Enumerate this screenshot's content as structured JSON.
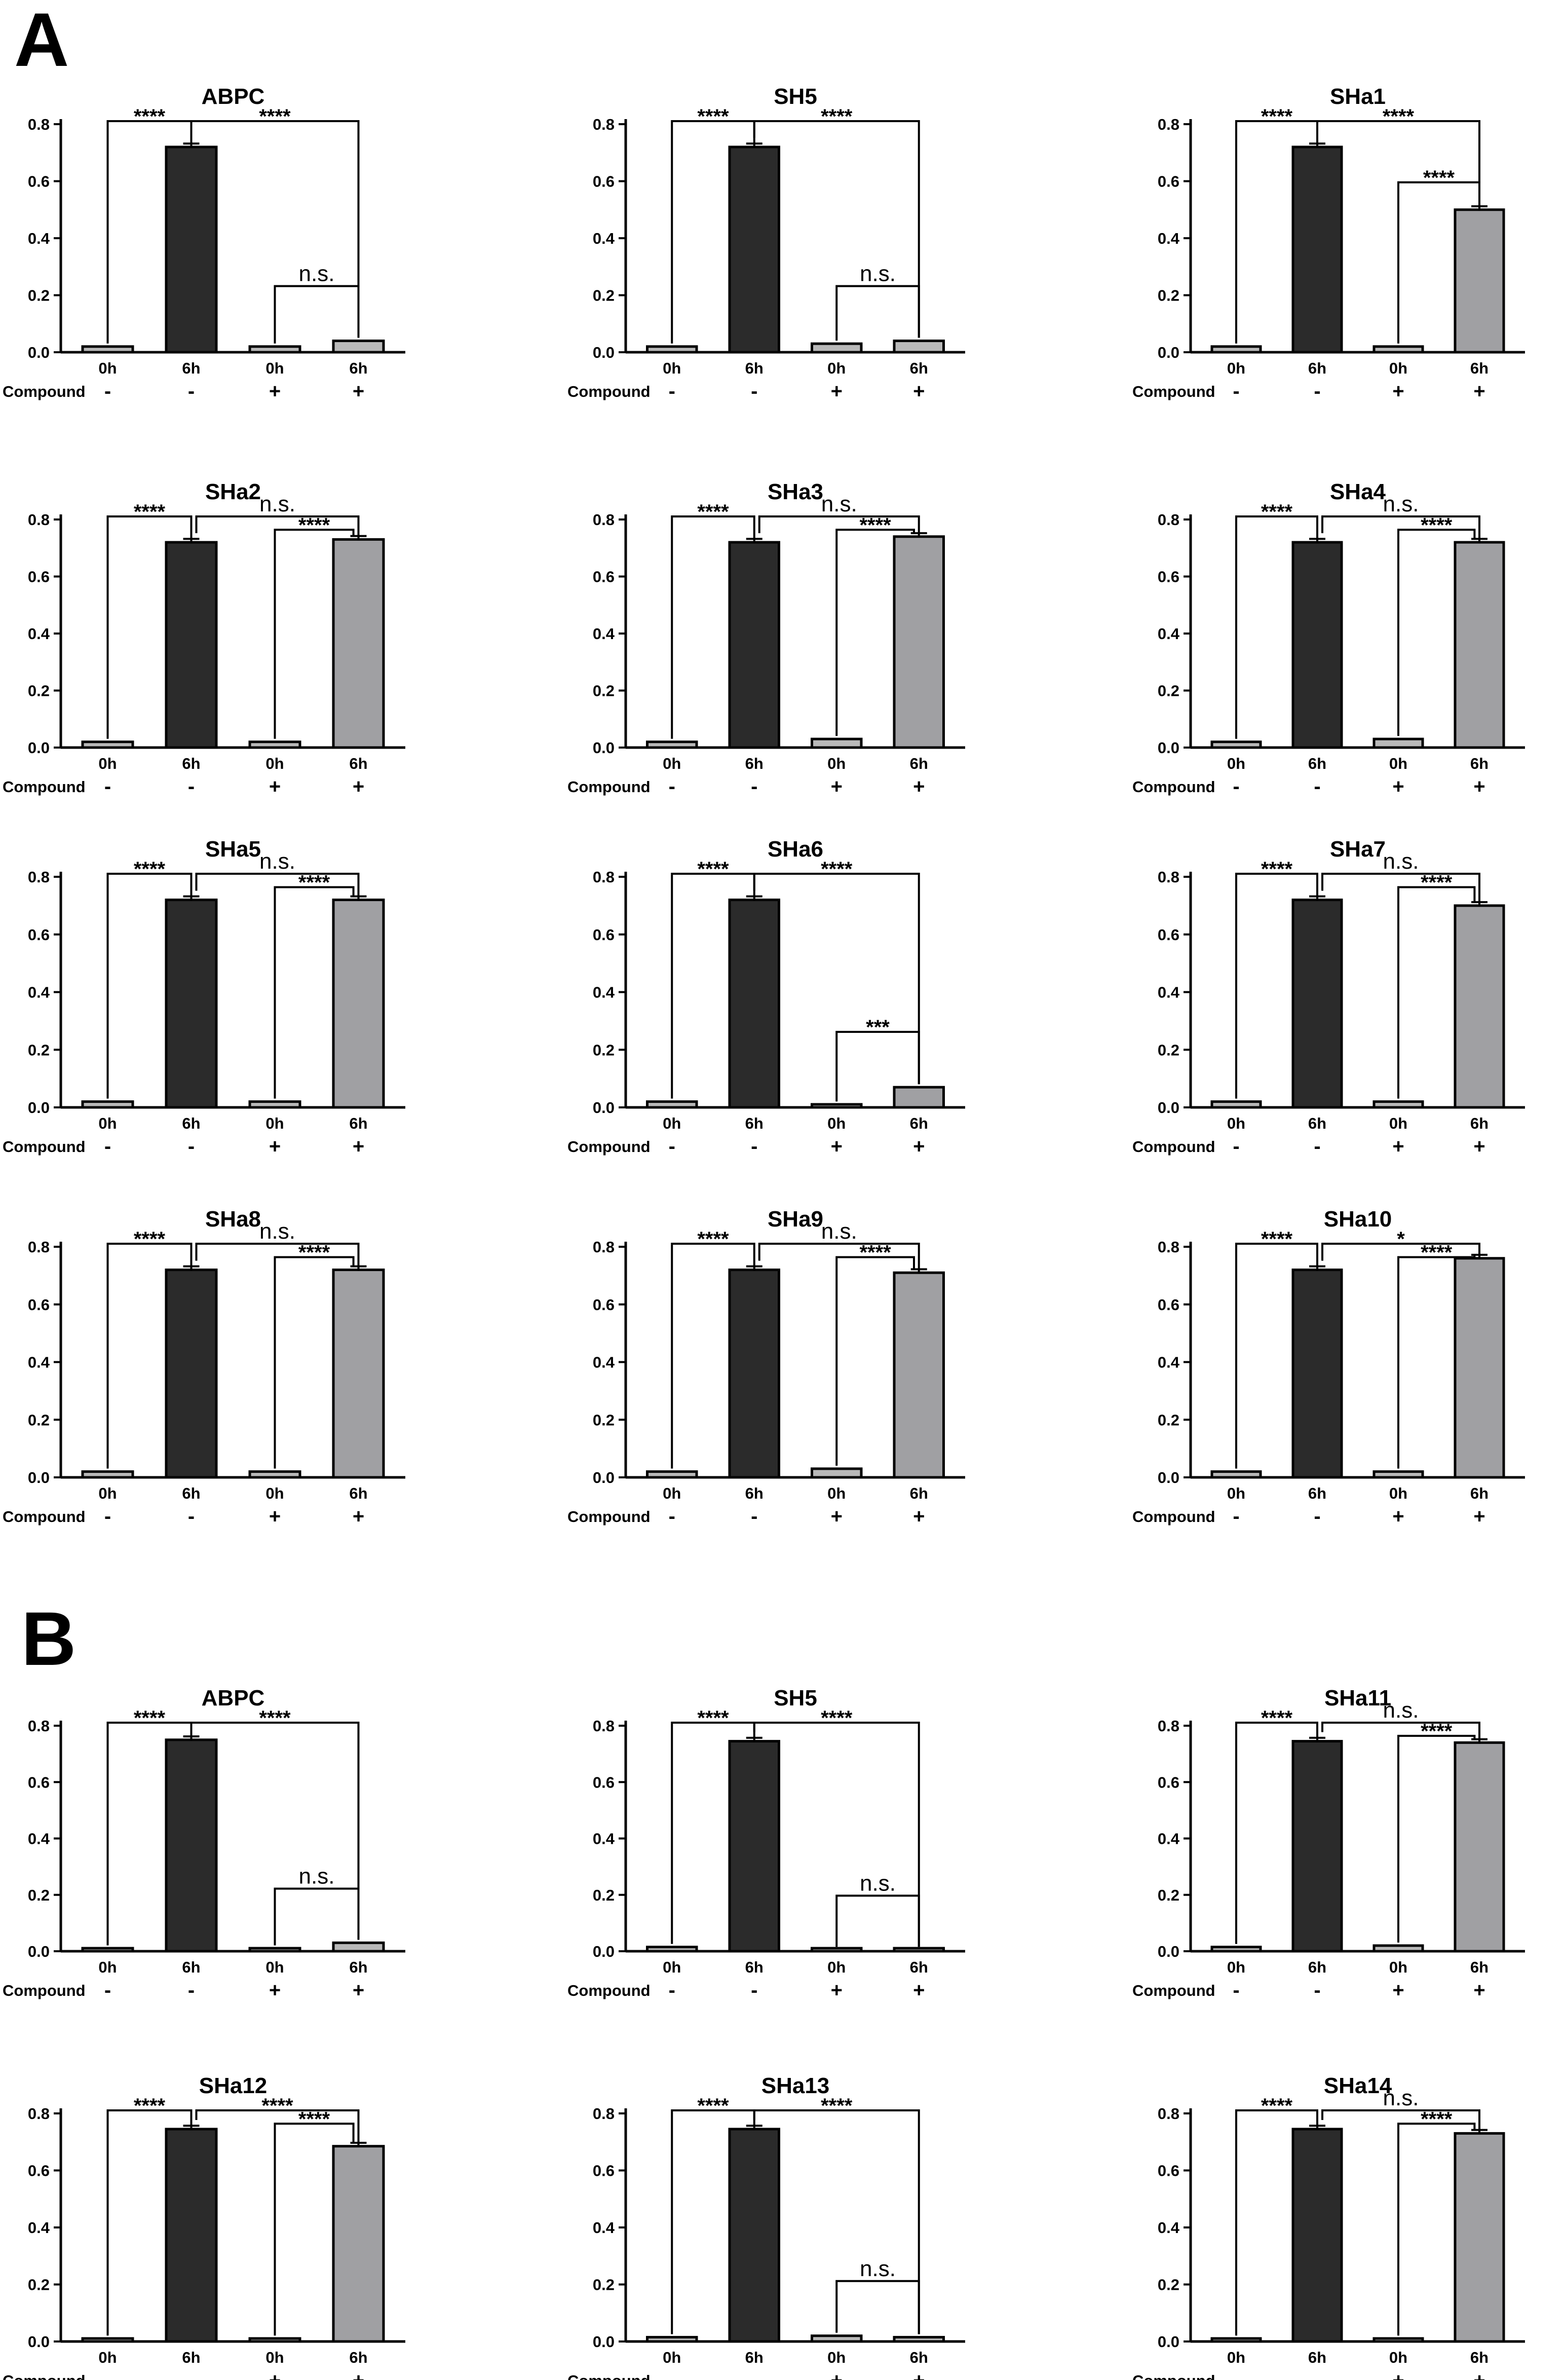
{
  "panels": [
    {
      "letter": "A"
    },
    {
      "letter": "B"
    }
  ],
  "colors": {
    "bar_dark": "#2b2b2b",
    "bar_light": "#a0a0a3",
    "bar_small": "#b9b9b9",
    "axis": "#000000"
  },
  "chart_data": [
    {
      "type": "bar",
      "panel": "A",
      "title": "ABPC",
      "categories": [
        "0h",
        "6h",
        "0h",
        "6h"
      ],
      "compound": [
        "-",
        "-",
        "+",
        "+"
      ],
      "compound_label": "Compound",
      "values": [
        0.02,
        0.72,
        0.02,
        0.04
      ],
      "ylim": [
        0,
        0.8
      ],
      "yticks": [
        "0.0",
        "0.2",
        "0.4",
        "0.6",
        "0.8"
      ],
      "brackets": [
        {
          "from": 0,
          "to": 1,
          "text": "****"
        },
        {
          "from": 1,
          "to": 3,
          "text": "****"
        },
        {
          "from": 2,
          "to": 3,
          "text": "n.s."
        }
      ]
    },
    {
      "type": "bar",
      "panel": "A",
      "title": "SH5",
      "categories": [
        "0h",
        "6h",
        "0h",
        "6h"
      ],
      "compound": [
        "-",
        "-",
        "+",
        "+"
      ],
      "compound_label": "Compound",
      "values": [
        0.02,
        0.72,
        0.03,
        0.04
      ],
      "ylim": [
        0,
        0.8
      ],
      "yticks": [
        "0.0",
        "0.2",
        "0.4",
        "0.6",
        "0.8"
      ],
      "brackets": [
        {
          "from": 0,
          "to": 1,
          "text": "****"
        },
        {
          "from": 1,
          "to": 3,
          "text": "****"
        },
        {
          "from": 2,
          "to": 3,
          "text": "n.s."
        }
      ]
    },
    {
      "type": "bar",
      "panel": "A",
      "title": "SHa1",
      "categories": [
        "0h",
        "6h",
        "0h",
        "6h"
      ],
      "compound": [
        "-",
        "-",
        "+",
        "+"
      ],
      "compound_label": "Compound",
      "values": [
        0.02,
        0.72,
        0.02,
        0.5
      ],
      "ylim": [
        0,
        0.8
      ],
      "yticks": [
        "0.0",
        "0.2",
        "0.4",
        "0.6",
        "0.8"
      ],
      "brackets": [
        {
          "from": 0,
          "to": 1,
          "text": "****"
        },
        {
          "from": 1,
          "to": 3,
          "text": "****"
        },
        {
          "from": 2,
          "to": 3,
          "text": "****"
        }
      ]
    },
    {
      "type": "bar",
      "panel": "A",
      "title": "SHa2",
      "categories": [
        "0h",
        "6h",
        "0h",
        "6h"
      ],
      "compound": [
        "-",
        "-",
        "+",
        "+"
      ],
      "compound_label": "Compound",
      "values": [
        0.02,
        0.72,
        0.02,
        0.73
      ],
      "ylim": [
        0,
        0.8
      ],
      "yticks": [
        "0.0",
        "0.2",
        "0.4",
        "0.6",
        "0.8"
      ],
      "brackets": [
        {
          "from": 0,
          "to": 1,
          "text": "****"
        },
        {
          "from": 1,
          "to": 3,
          "text": "n.s."
        },
        {
          "from": 2,
          "to": 3,
          "text": "****"
        }
      ]
    },
    {
      "type": "bar",
      "panel": "A",
      "title": "SHa3",
      "categories": [
        "0h",
        "6h",
        "0h",
        "6h"
      ],
      "compound": [
        "-",
        "-",
        "+",
        "+"
      ],
      "compound_label": "Compound",
      "values": [
        0.02,
        0.72,
        0.03,
        0.74
      ],
      "ylim": [
        0,
        0.8
      ],
      "yticks": [
        "0.0",
        "0.2",
        "0.4",
        "0.6",
        "0.8"
      ],
      "brackets": [
        {
          "from": 0,
          "to": 1,
          "text": "****"
        },
        {
          "from": 1,
          "to": 3,
          "text": "n.s."
        },
        {
          "from": 2,
          "to": 3,
          "text": "****"
        }
      ]
    },
    {
      "type": "bar",
      "panel": "A",
      "title": "SHa4",
      "categories": [
        "0h",
        "6h",
        "0h",
        "6h"
      ],
      "compound": [
        "-",
        "-",
        "+",
        "+"
      ],
      "compound_label": "Compound",
      "values": [
        0.02,
        0.72,
        0.03,
        0.72
      ],
      "ylim": [
        0,
        0.8
      ],
      "yticks": [
        "0.0",
        "0.2",
        "0.4",
        "0.6",
        "0.8"
      ],
      "brackets": [
        {
          "from": 0,
          "to": 1,
          "text": "****"
        },
        {
          "from": 1,
          "to": 3,
          "text": "n.s."
        },
        {
          "from": 2,
          "to": 3,
          "text": "****"
        }
      ]
    },
    {
      "type": "bar",
      "panel": "A",
      "title": "SHa5",
      "categories": [
        "0h",
        "6h",
        "0h",
        "6h"
      ],
      "compound": [
        "-",
        "-",
        "+",
        "+"
      ],
      "compound_label": "Compound",
      "values": [
        0.02,
        0.72,
        0.02,
        0.72
      ],
      "ylim": [
        0,
        0.8
      ],
      "yticks": [
        "0.0",
        "0.2",
        "0.4",
        "0.6",
        "0.8"
      ],
      "brackets": [
        {
          "from": 0,
          "to": 1,
          "text": "****"
        },
        {
          "from": 1,
          "to": 3,
          "text": "n.s."
        },
        {
          "from": 2,
          "to": 3,
          "text": "****"
        }
      ]
    },
    {
      "type": "bar",
      "panel": "A",
      "title": "SHa6",
      "categories": [
        "0h",
        "6h",
        "0h",
        "6h"
      ],
      "compound": [
        "-",
        "-",
        "+",
        "+"
      ],
      "compound_label": "Compound",
      "values": [
        0.02,
        0.72,
        0.01,
        0.07
      ],
      "ylim": [
        0,
        0.8
      ],
      "yticks": [
        "0.0",
        "0.2",
        "0.4",
        "0.6",
        "0.8"
      ],
      "brackets": [
        {
          "from": 0,
          "to": 1,
          "text": "****"
        },
        {
          "from": 1,
          "to": 3,
          "text": "****"
        },
        {
          "from": 2,
          "to": 3,
          "text": "***"
        }
      ]
    },
    {
      "type": "bar",
      "panel": "A",
      "title": "SHa7",
      "categories": [
        "0h",
        "6h",
        "0h",
        "6h"
      ],
      "compound": [
        "-",
        "-",
        "+",
        "+"
      ],
      "compound_label": "Compound",
      "values": [
        0.02,
        0.72,
        0.02,
        0.7
      ],
      "ylim": [
        0,
        0.8
      ],
      "yticks": [
        "0.0",
        "0.2",
        "0.4",
        "0.6",
        "0.8"
      ],
      "brackets": [
        {
          "from": 0,
          "to": 1,
          "text": "****"
        },
        {
          "from": 1,
          "to": 3,
          "text": "n.s."
        },
        {
          "from": 2,
          "to": 3,
          "text": "****"
        }
      ]
    },
    {
      "type": "bar",
      "panel": "A",
      "title": "SHa8",
      "categories": [
        "0h",
        "6h",
        "0h",
        "6h"
      ],
      "compound": [
        "-",
        "-",
        "+",
        "+"
      ],
      "compound_label": "Compound",
      "values": [
        0.02,
        0.72,
        0.02,
        0.72
      ],
      "ylim": [
        0,
        0.8
      ],
      "yticks": [
        "0.0",
        "0.2",
        "0.4",
        "0.6",
        "0.8"
      ],
      "brackets": [
        {
          "from": 0,
          "to": 1,
          "text": "****"
        },
        {
          "from": 1,
          "to": 3,
          "text": "n.s."
        },
        {
          "from": 2,
          "to": 3,
          "text": "****"
        }
      ]
    },
    {
      "type": "bar",
      "panel": "A",
      "title": "SHa9",
      "categories": [
        "0h",
        "6h",
        "0h",
        "6h"
      ],
      "compound": [
        "-",
        "-",
        "+",
        "+"
      ],
      "compound_label": "Compound",
      "values": [
        0.02,
        0.72,
        0.03,
        0.71
      ],
      "ylim": [
        0,
        0.8
      ],
      "yticks": [
        "0.0",
        "0.2",
        "0.4",
        "0.6",
        "0.8"
      ],
      "brackets": [
        {
          "from": 0,
          "to": 1,
          "text": "****"
        },
        {
          "from": 1,
          "to": 3,
          "text": "n.s."
        },
        {
          "from": 2,
          "to": 3,
          "text": "****"
        }
      ]
    },
    {
      "type": "bar",
      "panel": "A",
      "title": "SHa10",
      "categories": [
        "0h",
        "6h",
        "0h",
        "6h"
      ],
      "compound": [
        "-",
        "-",
        "+",
        "+"
      ],
      "compound_label": "Compound",
      "values": [
        0.02,
        0.72,
        0.02,
        0.76
      ],
      "ylim": [
        0,
        0.8
      ],
      "yticks": [
        "0.0",
        "0.2",
        "0.4",
        "0.6",
        "0.8"
      ],
      "brackets": [
        {
          "from": 0,
          "to": 1,
          "text": "****"
        },
        {
          "from": 1,
          "to": 3,
          "text": "*"
        },
        {
          "from": 2,
          "to": 3,
          "text": "****"
        }
      ]
    },
    {
      "type": "bar",
      "panel": "B",
      "title": "ABPC",
      "categories": [
        "0h",
        "6h",
        "0h",
        "6h"
      ],
      "compound": [
        "-",
        "-",
        "+",
        "+"
      ],
      "compound_label": "Compound",
      "values": [
        0.01,
        0.75,
        0.01,
        0.03
      ],
      "ylim": [
        0,
        0.8
      ],
      "yticks": [
        "0.0",
        "0.2",
        "0.4",
        "0.6",
        "0.8"
      ],
      "brackets": [
        {
          "from": 0,
          "to": 1,
          "text": "****"
        },
        {
          "from": 1,
          "to": 3,
          "text": "****"
        },
        {
          "from": 2,
          "to": 3,
          "text": "n.s."
        }
      ]
    },
    {
      "type": "bar",
      "panel": "B",
      "title": "SH5",
      "categories": [
        "0h",
        "6h",
        "0h",
        "6h"
      ],
      "compound": [
        "-",
        "-",
        "+",
        "+"
      ],
      "compound_label": "Compound",
      "values": [
        0.015,
        0.745,
        0.005,
        0.005
      ],
      "ylim": [
        0,
        0.8
      ],
      "yticks": [
        "0.0",
        "0.2",
        "0.4",
        "0.6",
        "0.8"
      ],
      "brackets": [
        {
          "from": 0,
          "to": 1,
          "text": "****"
        },
        {
          "from": 1,
          "to": 3,
          "text": "****"
        },
        {
          "from": 2,
          "to": 3,
          "text": "n.s."
        }
      ]
    },
    {
      "type": "bar",
      "panel": "B",
      "title": "SHa11",
      "categories": [
        "0h",
        "6h",
        "0h",
        "6h"
      ],
      "compound": [
        "-",
        "-",
        "+",
        "+"
      ],
      "compound_label": "Compound",
      "values": [
        0.015,
        0.745,
        0.02,
        0.74
      ],
      "ylim": [
        0,
        0.8
      ],
      "yticks": [
        "0.0",
        "0.2",
        "0.4",
        "0.6",
        "0.8"
      ],
      "brackets": [
        {
          "from": 0,
          "to": 1,
          "text": "****"
        },
        {
          "from": 1,
          "to": 3,
          "text": "n.s."
        },
        {
          "from": 2,
          "to": 3,
          "text": "****"
        }
      ]
    },
    {
      "type": "bar",
      "panel": "B",
      "title": "SHa12",
      "categories": [
        "0h",
        "6h",
        "0h",
        "6h"
      ],
      "compound": [
        "-",
        "-",
        "+",
        "+"
      ],
      "compound_label": "Compound",
      "values": [
        0.01,
        0.745,
        0.01,
        0.685
      ],
      "ylim": [
        0,
        0.8
      ],
      "yticks": [
        "0.0",
        "0.2",
        "0.4",
        "0.6",
        "0.8"
      ],
      "brackets": [
        {
          "from": 0,
          "to": 1,
          "text": "****"
        },
        {
          "from": 1,
          "to": 3,
          "text": "****"
        },
        {
          "from": 2,
          "to": 3,
          "text": "****"
        }
      ]
    },
    {
      "type": "bar",
      "panel": "B",
      "title": "SHa13",
      "categories": [
        "0h",
        "6h",
        "0h",
        "6h"
      ],
      "compound": [
        "-",
        "-",
        "+",
        "+"
      ],
      "compound_label": "Compound",
      "values": [
        0.015,
        0.745,
        0.02,
        0.015
      ],
      "ylim": [
        0,
        0.8
      ],
      "yticks": [
        "0.0",
        "0.2",
        "0.4",
        "0.6",
        "0.8"
      ],
      "brackets": [
        {
          "from": 0,
          "to": 1,
          "text": "****"
        },
        {
          "from": 1,
          "to": 3,
          "text": "****"
        },
        {
          "from": 2,
          "to": 3,
          "text": "n.s."
        }
      ]
    },
    {
      "type": "bar",
      "panel": "B",
      "title": "SHa14",
      "categories": [
        "0h",
        "6h",
        "0h",
        "6h"
      ],
      "compound": [
        "-",
        "-",
        "+",
        "+"
      ],
      "compound_label": "Compound",
      "values": [
        0.01,
        0.745,
        0.01,
        0.73
      ],
      "ylim": [
        0,
        0.8
      ],
      "yticks": [
        "0.0",
        "0.2",
        "0.4",
        "0.6",
        "0.8"
      ],
      "brackets": [
        {
          "from": 0,
          "to": 1,
          "text": "****"
        },
        {
          "from": 1,
          "to": 3,
          "text": "n.s."
        },
        {
          "from": 2,
          "to": 3,
          "text": "****"
        }
      ]
    }
  ]
}
